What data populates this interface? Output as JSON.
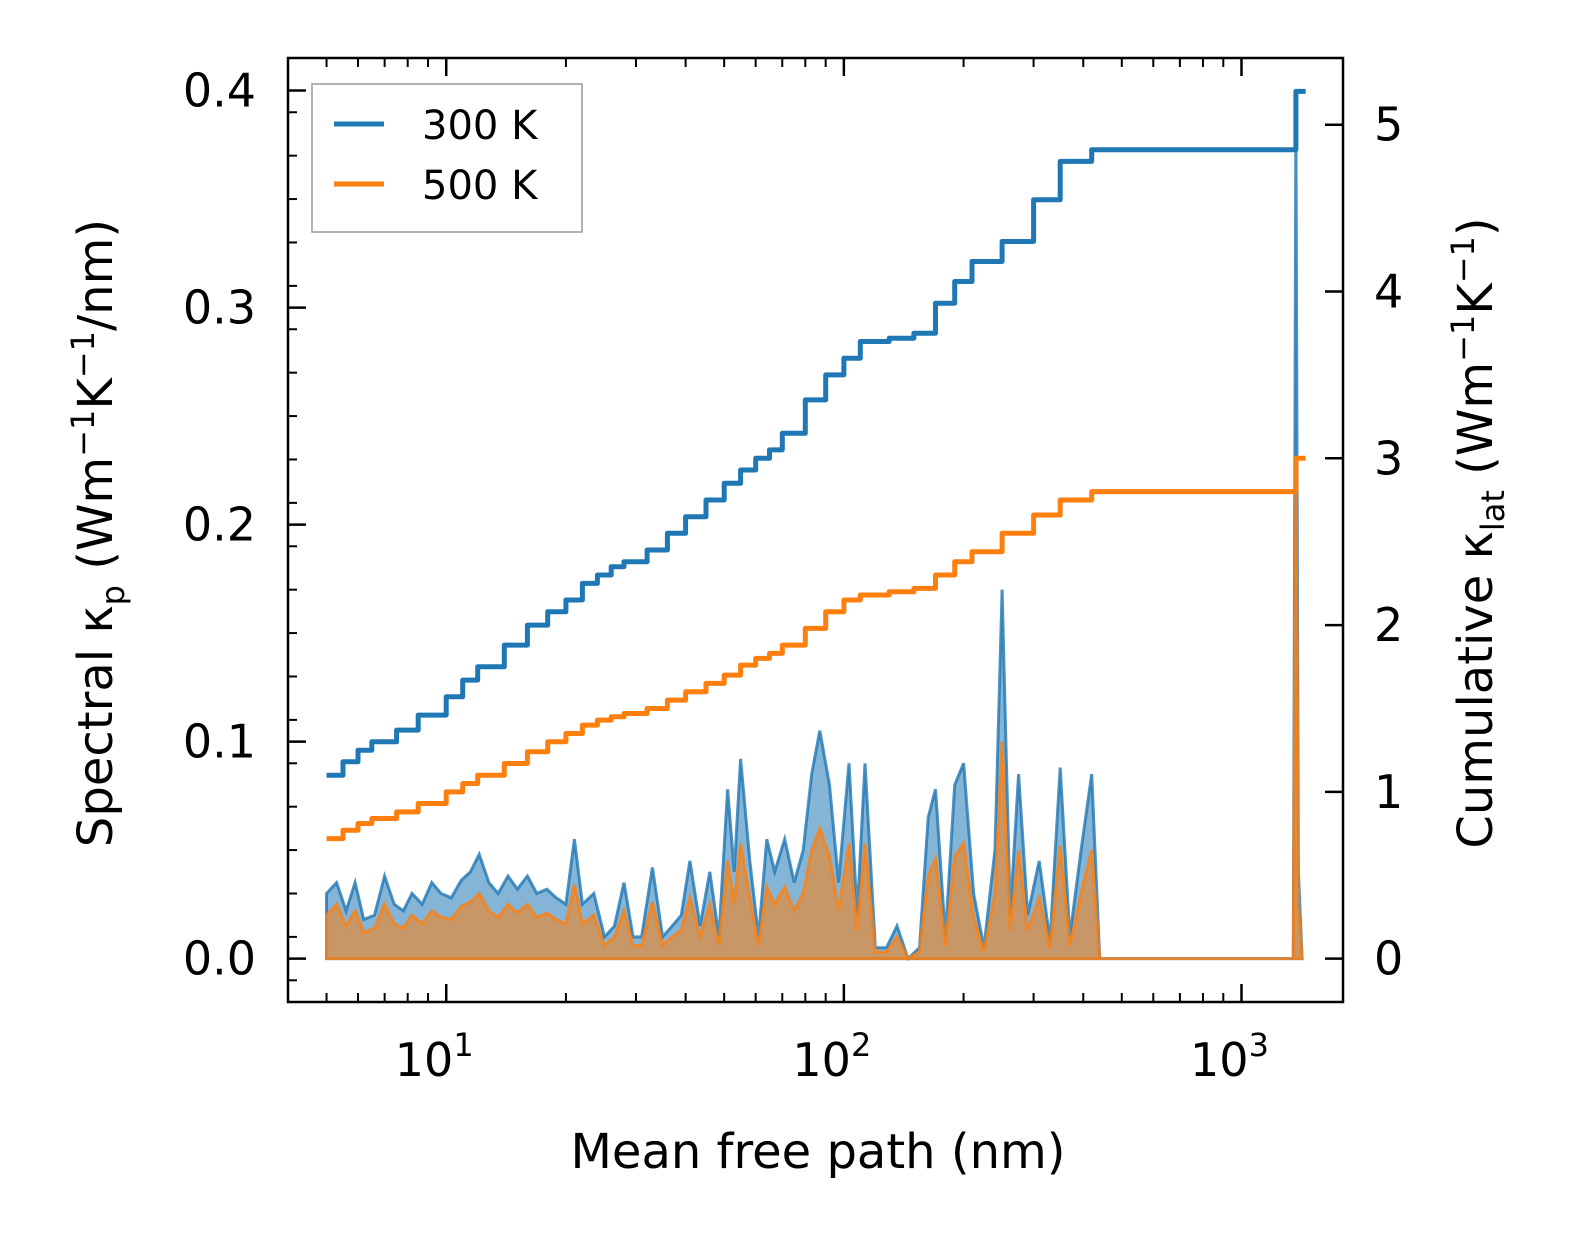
{
  "chart_data": {
    "type": "line",
    "xscale": "log",
    "xlim": [
      4,
      1800
    ],
    "ylim_left": [
      -0.02,
      0.415
    ],
    "ylim_right": [
      -0.26,
      5.4
    ],
    "xlabel": "Mean free path (nm)",
    "ylabel_left": "Spectral κp (Wm−1K−1/nm)",
    "ylabel_left_parts": {
      "main": "Spectral κ",
      "sub": "p",
      "unit_open": " (Wm",
      "exp1": "−1",
      "mid": "K",
      "exp2": "−1",
      "unit_close": "/nm)"
    },
    "ylabel_right": "Cumulative κlat (Wm−1K−1)",
    "ylabel_right_parts": {
      "main": "Cumulative κ",
      "sub": "lat",
      "unit_open": " (Wm",
      "exp1": "−1",
      "mid": "K",
      "exp2": "−1",
      "unit_close": ")"
    },
    "x_ticks": [
      {
        "value": 10,
        "base": "10",
        "exp": "1"
      },
      {
        "value": 100,
        "base": "10",
        "exp": "2"
      },
      {
        "value": 1000,
        "base": "10",
        "exp": "3"
      }
    ],
    "y_ticks_left": [
      {
        "value": 0.0,
        "label": "0.0"
      },
      {
        "value": 0.1,
        "label": "0.1"
      },
      {
        "value": 0.2,
        "label": "0.2"
      },
      {
        "value": 0.3,
        "label": "0.3"
      },
      {
        "value": 0.4,
        "label": "0.4"
      }
    ],
    "y_ticks_right": [
      {
        "value": 0,
        "label": "0"
      },
      {
        "value": 1,
        "label": "1"
      },
      {
        "value": 2,
        "label": "2"
      },
      {
        "value": 3,
        "label": "3"
      },
      {
        "value": 4,
        "label": "4"
      },
      {
        "value": 5,
        "label": "5"
      }
    ],
    "legend": {
      "position": "top-left",
      "entries": [
        "300 K",
        "500 K"
      ]
    },
    "series": [
      {
        "name": "300 K",
        "color": "#1f77b4",
        "cumulative": {
          "x": [
            5.0,
            5.5,
            6.0,
            6.5,
            7.5,
            8.5,
            10.0,
            11.0,
            12.0,
            14.0,
            16.0,
            18.0,
            20.0,
            22.0,
            24.0,
            26.0,
            28.0,
            32.0,
            36.0,
            40.0,
            45.0,
            50.0,
            55.0,
            60.0,
            65.0,
            70.0,
            80.0,
            90.0,
            100.0,
            110.0,
            130.0,
            150.0,
            170.0,
            190.0,
            210.0,
            250.0,
            300.0,
            350.0,
            420.0,
            1350.0,
            1370.0,
            1450.0
          ],
          "y": [
            1.1,
            1.18,
            1.25,
            1.3,
            1.37,
            1.46,
            1.57,
            1.67,
            1.75,
            1.88,
            2.0,
            2.08,
            2.15,
            2.25,
            2.3,
            2.35,
            2.38,
            2.45,
            2.55,
            2.65,
            2.75,
            2.85,
            2.93,
            3.0,
            3.05,
            3.15,
            3.35,
            3.5,
            3.6,
            3.7,
            3.72,
            3.75,
            3.93,
            4.06,
            4.18,
            4.3,
            4.55,
            4.78,
            4.85,
            4.85,
            5.2,
            5.2
          ]
        },
        "spectral": {
          "x": [
            5.0,
            5.3,
            5.6,
            5.9,
            6.2,
            6.6,
            7.0,
            7.4,
            7.8,
            8.2,
            8.7,
            9.2,
            9.7,
            10.3,
            10.9,
            11.5,
            12.1,
            12.8,
            13.5,
            14.3,
            15.1,
            16.0,
            16.9,
            17.9,
            18.9,
            20.0,
            21.0,
            22.0,
            23.5,
            25.0,
            26.5,
            28.0,
            29.5,
            31.0,
            33.0,
            35.0,
            37.0,
            39.0,
            41.0,
            43.5,
            46.0,
            48.5,
            51.0,
            53.0,
            55.0,
            58.0,
            61.0,
            64.0,
            67.0,
            71.0,
            75.0,
            79.0,
            83.0,
            87.0,
            92.0,
            97.0,
            103.0,
            108.0,
            113.0,
            120.0,
            128.0,
            136.0,
            145.0,
            155.0,
            163.0,
            170.0,
            180.0,
            190.0,
            200.0,
            212.0,
            225.0,
            240.0,
            250.0,
            262.0,
            275.0,
            290.0,
            310.0,
            330.0,
            350.0,
            370.0,
            395.0,
            420.0,
            440.0,
            1350.0,
            1370.0,
            1390.0,
            1420.0
          ],
          "y300": [
            0.03,
            0.035,
            0.022,
            0.035,
            0.018,
            0.02,
            0.038,
            0.025,
            0.022,
            0.03,
            0.025,
            0.035,
            0.03,
            0.028,
            0.036,
            0.04,
            0.048,
            0.035,
            0.03,
            0.038,
            0.032,
            0.038,
            0.03,
            0.032,
            0.028,
            0.025,
            0.055,
            0.025,
            0.03,
            0.01,
            0.015,
            0.035,
            0.01,
            0.01,
            0.042,
            0.01,
            0.015,
            0.02,
            0.045,
            0.015,
            0.04,
            0.01,
            0.078,
            0.04,
            0.092,
            0.045,
            0.01,
            0.055,
            0.04,
            0.055,
            0.035,
            0.05,
            0.085,
            0.105,
            0.08,
            0.035,
            0.09,
            0.02,
            0.09,
            0.005,
            0.005,
            0.015,
            0.0,
            0.005,
            0.065,
            0.078,
            0.01,
            0.08,
            0.09,
            0.03,
            0.005,
            0.05,
            0.17,
            0.02,
            0.085,
            0.02,
            0.045,
            0.008,
            0.088,
            0.01,
            0.05,
            0.085,
            0.0,
            0.0,
            0.39,
            0.04,
            0.0
          ],
          "y500": [
            0.02,
            0.025,
            0.015,
            0.022,
            0.012,
            0.014,
            0.025,
            0.016,
            0.014,
            0.02,
            0.016,
            0.022,
            0.019,
            0.018,
            0.024,
            0.026,
            0.03,
            0.022,
            0.019,
            0.025,
            0.021,
            0.025,
            0.019,
            0.021,
            0.018,
            0.016,
            0.034,
            0.016,
            0.02,
            0.006,
            0.01,
            0.022,
            0.006,
            0.006,
            0.026,
            0.006,
            0.01,
            0.013,
            0.028,
            0.01,
            0.025,
            0.006,
            0.045,
            0.025,
            0.053,
            0.028,
            0.006,
            0.033,
            0.025,
            0.033,
            0.022,
            0.03,
            0.05,
            0.06,
            0.047,
            0.022,
            0.053,
            0.013,
            0.053,
            0.003,
            0.003,
            0.01,
            0.0,
            0.003,
            0.038,
            0.046,
            0.006,
            0.047,
            0.053,
            0.019,
            0.003,
            0.03,
            0.1,
            0.013,
            0.05,
            0.013,
            0.028,
            0.005,
            0.052,
            0.006,
            0.03,
            0.05,
            0.0,
            0.0,
            0.23,
            0.025,
            0.0
          ]
        }
      },
      {
        "name": "500 K",
        "color": "#ff7f0e",
        "cumulative": {
          "x": [
            5.0,
            5.5,
            6.0,
            6.5,
            7.5,
            8.5,
            10.0,
            11.0,
            12.0,
            14.0,
            16.0,
            18.0,
            20.0,
            22.0,
            24.0,
            26.0,
            28.0,
            32.0,
            36.0,
            40.0,
            45.0,
            50.0,
            55.0,
            60.0,
            65.0,
            70.0,
            80.0,
            90.0,
            100.0,
            110.0,
            130.0,
            150.0,
            170.0,
            190.0,
            210.0,
            250.0,
            300.0,
            350.0,
            420.0,
            1350.0,
            1370.0,
            1450.0
          ],
          "y": [
            0.72,
            0.77,
            0.81,
            0.84,
            0.88,
            0.93,
            1.0,
            1.05,
            1.1,
            1.17,
            1.24,
            1.3,
            1.35,
            1.4,
            1.43,
            1.45,
            1.47,
            1.5,
            1.55,
            1.6,
            1.65,
            1.7,
            1.76,
            1.8,
            1.83,
            1.88,
            1.98,
            2.08,
            2.15,
            2.18,
            2.2,
            2.22,
            2.3,
            2.38,
            2.44,
            2.55,
            2.66,
            2.75,
            2.8,
            2.8,
            3.0,
            3.0
          ]
        }
      }
    ]
  }
}
